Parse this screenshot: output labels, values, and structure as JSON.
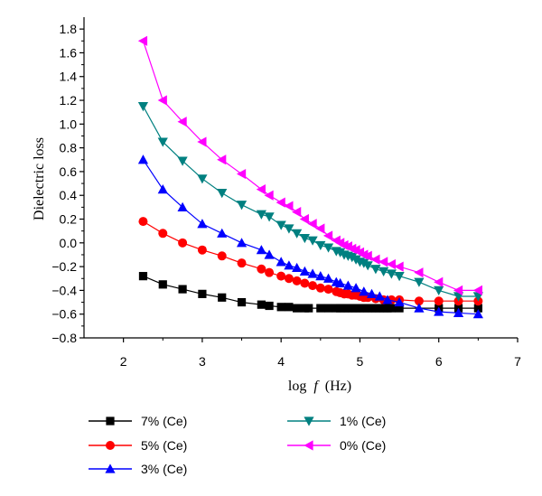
{
  "chart_data": {
    "type": "line",
    "xlabel": "log f (Hz)",
    "xlabel_main": "log",
    "xlabel_var": "f",
    "xlabel_unit": "(Hz)",
    "ylabel": "Dielectric loss",
    "xlim": [
      1.5,
      7
    ],
    "ylim": [
      -0.8,
      1.9
    ],
    "x_ticks": [
      2,
      3,
      4,
      5,
      6,
      7
    ],
    "y_ticks": [
      -0.8,
      -0.6,
      -0.4,
      -0.2,
      0.0,
      0.2,
      0.4,
      0.6,
      0.8,
      1.0,
      1.2,
      1.4,
      1.6,
      1.8
    ],
    "y_tick_labels": [
      "−0.8",
      "−0.6",
      "−0.4",
      "−0.2",
      "0.0",
      "0.2",
      "0.4",
      "0.6",
      "0.8",
      "1.0",
      "1.2",
      "1.4",
      "1.6",
      "1.8"
    ],
    "grid": false,
    "legend_position": "bottom",
    "series": [
      {
        "name": "7% (Ce)",
        "color": "#000000",
        "marker": "square",
        "points": [
          [
            2.25,
            -0.28
          ],
          [
            2.5,
            -0.35
          ],
          [
            2.75,
            -0.39
          ],
          [
            3.0,
            -0.43
          ],
          [
            3.25,
            -0.46
          ],
          [
            3.5,
            -0.5
          ],
          [
            3.75,
            -0.52
          ],
          [
            3.85,
            -0.53
          ],
          [
            4.0,
            -0.54
          ],
          [
            4.1,
            -0.54
          ],
          [
            4.2,
            -0.55
          ],
          [
            4.3,
            -0.55
          ],
          [
            4.35,
            -0.55
          ],
          [
            4.5,
            -0.55
          ],
          [
            4.6,
            -0.55
          ],
          [
            4.7,
            -0.55
          ],
          [
            4.75,
            -0.55
          ],
          [
            4.8,
            -0.55
          ],
          [
            4.85,
            -0.55
          ],
          [
            4.9,
            -0.55
          ],
          [
            4.95,
            -0.55
          ],
          [
            5.0,
            -0.55
          ],
          [
            5.05,
            -0.55
          ],
          [
            5.1,
            -0.55
          ],
          [
            5.15,
            -0.55
          ],
          [
            5.2,
            -0.55
          ],
          [
            5.25,
            -0.55
          ],
          [
            5.3,
            -0.55
          ],
          [
            5.35,
            -0.55
          ],
          [
            5.4,
            -0.55
          ],
          [
            5.5,
            -0.55
          ],
          [
            6.0,
            -0.55
          ],
          [
            6.25,
            -0.55
          ],
          [
            6.5,
            -0.55
          ]
        ]
      },
      {
        "name": "5% (Ce)",
        "color": "#ff0000",
        "marker": "circle",
        "points": [
          [
            2.25,
            0.18
          ],
          [
            2.5,
            0.08
          ],
          [
            2.75,
            0.0
          ],
          [
            3.0,
            -0.06
          ],
          [
            3.25,
            -0.11
          ],
          [
            3.5,
            -0.17
          ],
          [
            3.75,
            -0.22
          ],
          [
            3.85,
            -0.25
          ],
          [
            4.0,
            -0.28
          ],
          [
            4.1,
            -0.3
          ],
          [
            4.2,
            -0.32
          ],
          [
            4.3,
            -0.34
          ],
          [
            4.4,
            -0.36
          ],
          [
            4.5,
            -0.38
          ],
          [
            4.6,
            -0.39
          ],
          [
            4.7,
            -0.41
          ],
          [
            4.75,
            -0.42
          ],
          [
            4.8,
            -0.43
          ],
          [
            4.85,
            -0.43
          ],
          [
            4.9,
            -0.44
          ],
          [
            4.95,
            -0.44
          ],
          [
            5.0,
            -0.45
          ],
          [
            5.05,
            -0.46
          ],
          [
            5.1,
            -0.46
          ],
          [
            5.2,
            -0.47
          ],
          [
            5.3,
            -0.48
          ],
          [
            5.4,
            -0.48
          ],
          [
            5.5,
            -0.48
          ],
          [
            5.75,
            -0.49
          ],
          [
            6.0,
            -0.49
          ],
          [
            6.25,
            -0.49
          ],
          [
            6.5,
            -0.49
          ]
        ]
      },
      {
        "name": "3% (Ce)",
        "color": "#0000ff",
        "marker": "triangle-up",
        "points": [
          [
            2.25,
            0.7
          ],
          [
            2.5,
            0.45
          ],
          [
            2.75,
            0.3
          ],
          [
            3.0,
            0.16
          ],
          [
            3.25,
            0.08
          ],
          [
            3.5,
            0.0
          ],
          [
            3.75,
            -0.06
          ],
          [
            3.85,
            -0.1
          ],
          [
            4.0,
            -0.16
          ],
          [
            4.1,
            -0.19
          ],
          [
            4.2,
            -0.21
          ],
          [
            4.3,
            -0.24
          ],
          [
            4.4,
            -0.26
          ],
          [
            4.5,
            -0.28
          ],
          [
            4.6,
            -0.3
          ],
          [
            4.7,
            -0.33
          ],
          [
            4.75,
            -0.34
          ],
          [
            4.85,
            -0.36
          ],
          [
            4.95,
            -0.38
          ],
          [
            5.05,
            -0.41
          ],
          [
            5.15,
            -0.43
          ],
          [
            5.25,
            -0.45
          ],
          [
            5.35,
            -0.48
          ],
          [
            5.5,
            -0.5
          ],
          [
            5.75,
            -0.55
          ],
          [
            6.0,
            -0.58
          ],
          [
            6.25,
            -0.59
          ],
          [
            6.5,
            -0.6
          ]
        ]
      },
      {
        "name": "1% (Ce)",
        "color": "#008080",
        "marker": "triangle-down",
        "points": [
          [
            2.25,
            1.15
          ],
          [
            2.5,
            0.85
          ],
          [
            2.75,
            0.69
          ],
          [
            3.0,
            0.54
          ],
          [
            3.25,
            0.42
          ],
          [
            3.5,
            0.32
          ],
          [
            3.75,
            0.24
          ],
          [
            3.85,
            0.22
          ],
          [
            4.0,
            0.15
          ],
          [
            4.1,
            0.12
          ],
          [
            4.2,
            0.08
          ],
          [
            4.3,
            0.04
          ],
          [
            4.4,
            0.02
          ],
          [
            4.5,
            -0.02
          ],
          [
            4.6,
            -0.04
          ],
          [
            4.7,
            -0.07
          ],
          [
            4.75,
            -0.08
          ],
          [
            4.8,
            -0.1
          ],
          [
            4.85,
            -0.11
          ],
          [
            4.9,
            -0.12
          ],
          [
            4.95,
            -0.14
          ],
          [
            5.0,
            -0.16
          ],
          [
            5.05,
            -0.17
          ],
          [
            5.1,
            -0.19
          ],
          [
            5.2,
            -0.22
          ],
          [
            5.3,
            -0.24
          ],
          [
            5.4,
            -0.26
          ],
          [
            5.5,
            -0.28
          ],
          [
            5.75,
            -0.33
          ],
          [
            6.0,
            -0.4
          ],
          [
            6.25,
            -0.45
          ],
          [
            6.5,
            -0.45
          ]
        ]
      },
      {
        "name": "0% (Ce)",
        "color": "#ff00ff",
        "marker": "triangle-left",
        "points": [
          [
            2.25,
            1.7
          ],
          [
            2.5,
            1.2
          ],
          [
            2.75,
            1.02
          ],
          [
            3.0,
            0.85
          ],
          [
            3.25,
            0.7
          ],
          [
            3.5,
            0.58
          ],
          [
            3.75,
            0.45
          ],
          [
            3.85,
            0.4
          ],
          [
            4.0,
            0.34
          ],
          [
            4.1,
            0.31
          ],
          [
            4.2,
            0.26
          ],
          [
            4.3,
            0.2
          ],
          [
            4.4,
            0.16
          ],
          [
            4.5,
            0.12
          ],
          [
            4.6,
            0.06
          ],
          [
            4.7,
            0.02
          ],
          [
            4.75,
            0.0
          ],
          [
            4.8,
            -0.02
          ],
          [
            4.85,
            -0.03
          ],
          [
            4.9,
            -0.05
          ],
          [
            4.95,
            -0.06
          ],
          [
            5.0,
            -0.08
          ],
          [
            5.05,
            -0.1
          ],
          [
            5.1,
            -0.11
          ],
          [
            5.2,
            -0.14
          ],
          [
            5.3,
            -0.16
          ],
          [
            5.4,
            -0.18
          ],
          [
            5.5,
            -0.2
          ],
          [
            5.75,
            -0.25
          ],
          [
            6.0,
            -0.33
          ],
          [
            6.25,
            -0.4
          ],
          [
            6.5,
            -0.4
          ]
        ]
      }
    ]
  }
}
